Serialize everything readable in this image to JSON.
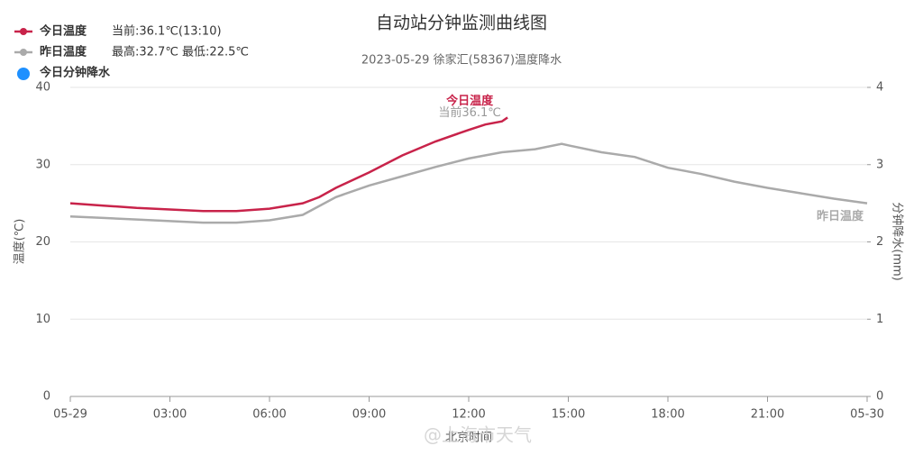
{
  "chart_data": {
    "type": "line",
    "title": "自动站分钟监测曲线图",
    "subtitle": "2023-05-29 徐家汇(58367)温度降水",
    "y_label": "温度(℃)",
    "y2_label": "分钟降水(mm)",
    "x_label": "北京时间",
    "watermark": "@上海市天气",
    "xlim": [
      0,
      24
    ],
    "xticks": [
      {
        "value": 0,
        "label": "05-29"
      },
      {
        "value": 3,
        "label": "03:00"
      },
      {
        "value": 6,
        "label": "06:00"
      },
      {
        "value": 9,
        "label": "09:00"
      },
      {
        "value": 12,
        "label": "12:00"
      },
      {
        "value": 15,
        "label": "15:00"
      },
      {
        "value": 18,
        "label": "18:00"
      },
      {
        "value": 21,
        "label": "21:00"
      },
      {
        "value": 24,
        "label": "05-30"
      }
    ],
    "ylim": [
      0,
      40
    ],
    "yticks": [
      0,
      10,
      20,
      30,
      40
    ],
    "y2lim": [
      0,
      4
    ],
    "y2ticks": [
      0,
      1,
      2,
      3,
      4
    ],
    "grid": true,
    "series": [
      {
        "name": "今日温度",
        "color": "#c8234a",
        "note": "当前:36.1℃(13:10)",
        "end_label": "今日温度",
        "end_note": "当前36.1℃",
        "x": [
          0,
          1,
          2,
          3,
          4,
          5,
          6,
          7,
          7.5,
          8,
          9,
          10,
          11,
          12,
          12.5,
          13,
          13.17
        ],
        "values": [
          25.0,
          24.7,
          24.4,
          24.2,
          24.0,
          24.0,
          24.3,
          25.0,
          25.8,
          27.0,
          29.0,
          31.2,
          33.0,
          34.5,
          35.2,
          35.6,
          36.1
        ]
      },
      {
        "name": "昨日温度",
        "color": "#aaaaaa",
        "note": "最高:32.7℃ 最低:22.5℃",
        "end_label": "昨日温度",
        "x": [
          0,
          1,
          2,
          3,
          4,
          5,
          6,
          7,
          8,
          9,
          10,
          11,
          12,
          13,
          14,
          14.8,
          15,
          16,
          17,
          18,
          19,
          20,
          21,
          22,
          23,
          24
        ],
        "values": [
          23.3,
          23.1,
          22.9,
          22.7,
          22.5,
          22.5,
          22.8,
          23.5,
          25.8,
          27.3,
          28.5,
          29.7,
          30.8,
          31.6,
          32.0,
          32.7,
          32.5,
          31.6,
          31.0,
          29.6,
          28.8,
          27.8,
          27.0,
          26.3,
          25.6,
          25.0
        ]
      },
      {
        "name": "今日分钟降水",
        "color": "#1e90ff",
        "axis": "y2",
        "x": [],
        "values": []
      }
    ]
  }
}
